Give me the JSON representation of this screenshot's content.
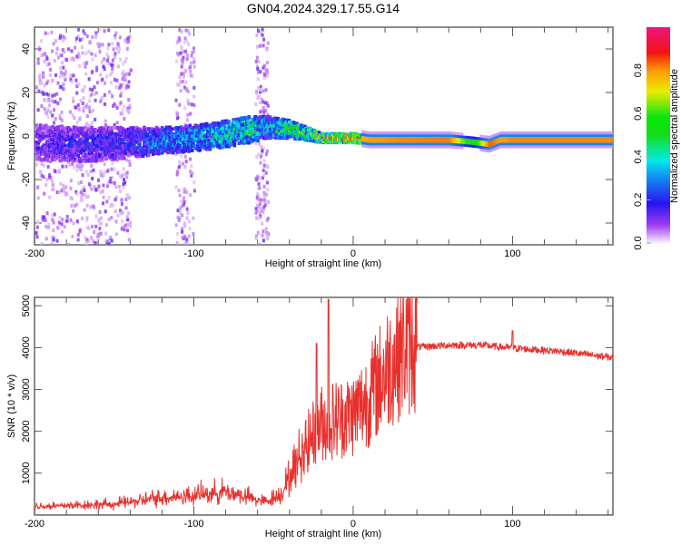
{
  "chart_data": [
    {
      "type": "heatmap",
      "title": "GN04.2024.329.17.55.G14",
      "xlabel": "Height of straight line (km)",
      "ylabel": "Frequency (Hz)",
      "xlim": [
        -200,
        163
      ],
      "ylim": [
        -50,
        50
      ],
      "xticks": [
        -200,
        -100,
        0,
        100
      ],
      "yticks": [
        -40,
        -20,
        0,
        20,
        40
      ],
      "colorbar": {
        "label": "Normalized spectral amplitude",
        "ticks": [
          "0.0",
          "0.2",
          "0.4",
          "0.6",
          "0.8"
        ],
        "range": [
          0,
          1
        ]
      },
      "ridge": {
        "height_km": [
          -200,
          -170,
          -140,
          -120,
          -100,
          -80,
          -65,
          -55,
          -40,
          -30,
          -20,
          -10,
          0,
          10,
          30,
          60,
          75,
          85,
          92,
          100,
          130,
          163
        ],
        "center_hz": [
          -3,
          -4,
          -3,
          -2,
          -1,
          1,
          3,
          4,
          3,
          1,
          -1,
          -1,
          -1,
          -2,
          -2,
          -2,
          -3,
          -4,
          -2,
          -2,
          -2,
          -2
        ],
        "spread_hz": [
          8,
          8,
          7,
          6,
          6,
          6,
          6,
          5,
          4,
          3,
          2,
          2,
          2,
          2,
          2,
          2,
          2,
          2,
          2,
          2,
          2,
          2
        ],
        "amplitude": [
          0.15,
          0.18,
          0.2,
          0.3,
          0.35,
          0.4,
          0.45,
          0.35,
          0.5,
          0.55,
          0.75,
          0.8,
          0.85,
          0.9,
          0.92,
          0.93,
          0.55,
          0.95,
          0.9,
          0.92,
          0.92,
          0.92
        ]
      },
      "noise_regions_km": [
        [
          -200,
          -140
        ],
        [
          -112,
          -100
        ],
        [
          -62,
          -54
        ]
      ]
    },
    {
      "type": "line",
      "xlabel": "Height of straight line (km)",
      "ylabel": "SNR (10 * v/v)",
      "xlim": [
        -200,
        163
      ],
      "ylim": [
        0,
        5200
      ],
      "xticks": [
        -200,
        -100,
        0,
        100
      ],
      "yticks": [
        1000,
        2000,
        3000,
        4000,
        5000
      ],
      "color": "#e8302c",
      "series": [
        {
          "name": "SNR",
          "x": [
            -200,
            -150,
            -120,
            -100,
            -80,
            -65,
            -55,
            -45,
            -38,
            -30,
            -20,
            -10,
            0,
            10,
            20,
            30,
            40,
            60,
            80,
            100,
            130,
            163
          ],
          "y": [
            200,
            250,
            400,
            450,
            550,
            400,
            300,
            500,
            1000,
            1600,
            2100,
            2200,
            2300,
            2700,
            3300,
            3800,
            4000,
            4050,
            4050,
            3980,
            3900,
            3750
          ]
        }
      ],
      "spikes": [
        {
          "x": -15.5,
          "y": 5150
        },
        {
          "x": -23,
          "y": 4100
        },
        {
          "x": 100,
          "y": 4400
        }
      ]
    }
  ]
}
